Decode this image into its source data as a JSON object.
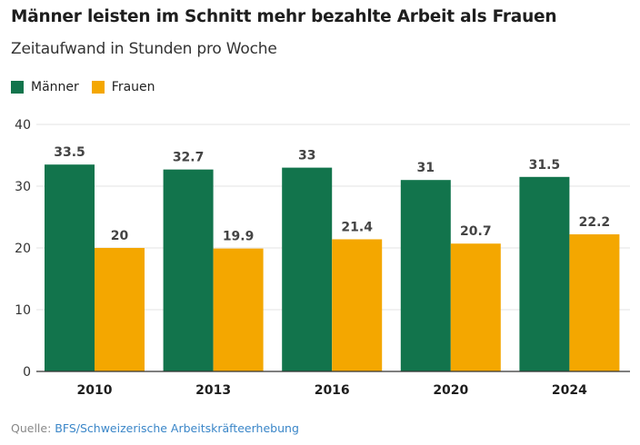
{
  "header": {
    "title": "Männer leisten im Schnitt mehr bezahlte Arbeit als Frauen",
    "subtitle": "Zeitaufwand in Stunden pro Woche"
  },
  "legend": {
    "men_label": "Männer",
    "women_label": "Frauen"
  },
  "source": {
    "prefix": "Quelle: ",
    "link_text": "BFS/Schweizerische Arbeitskräfteerhebung"
  },
  "colors": {
    "men": "#12744c",
    "women": "#f4a700",
    "source_link": "#3a86c8"
  },
  "chart_data": {
    "type": "bar",
    "title": "Männer leisten im Schnitt mehr bezahlte Arbeit als Frauen",
    "subtitle": "Zeitaufwand in Stunden pro Woche",
    "categories": [
      "2010",
      "2013",
      "2016",
      "2020",
      "2024"
    ],
    "series": [
      {
        "name": "Männer",
        "values": [
          33.5,
          32.7,
          33,
          31,
          31.5
        ],
        "labels": [
          "33.5",
          "32.7",
          "33",
          "31",
          "31.5"
        ]
      },
      {
        "name": "Frauen",
        "values": [
          20,
          19.9,
          21.4,
          20.7,
          22.2
        ],
        "labels": [
          "20",
          "19.9",
          "21.4",
          "20.7",
          "22.2"
        ]
      }
    ],
    "yticks": [
      0,
      10,
      20,
      30,
      40
    ],
    "ylim": [
      0,
      40
    ],
    "grid": true,
    "legend_position": "top-left"
  }
}
